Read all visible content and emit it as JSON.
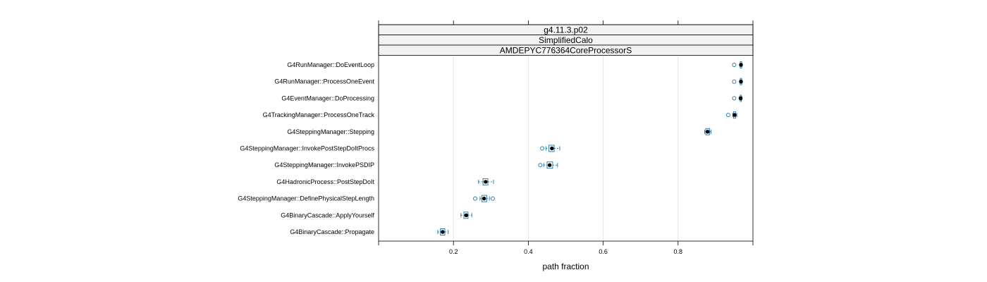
{
  "chart_data": {
    "type": "boxplot",
    "strips": [
      "g4.11.3.p02",
      "SimplifiedCalo",
      "AMDEPYC776364CoreProcessorS"
    ],
    "xlabel": "path fraction",
    "xlim": [
      0.0,
      1.0
    ],
    "xticks": [
      0.2,
      0.4,
      0.6,
      0.8
    ],
    "xtick_labels": [
      "0.2",
      "0.4",
      "0.6",
      "0.8"
    ],
    "grid": true,
    "colors": {
      "box": "#2E7FB0",
      "median": "#000000",
      "grid": "#E6E6E6",
      "strip_bg": "#F2F2F2",
      "frame": "#000000"
    },
    "categories": [
      "G4RunManager::DoEventLoop",
      "G4RunManager::ProcessOneEvent",
      "G4EventManager::DoProcessing",
      "G4TrackingManager::ProcessOneTrack",
      "G4SteppingManager::Stepping",
      "G4SteppingManager::InvokePostStepDoItProcs",
      "G4SteppingManager::InvokePSDIP",
      "G4HadronicProcess::PostStepDoIt",
      "G4SteppingManager::DefinePhysicalStepLength",
      "G4BinaryCascade::ApplyYourself",
      "G4BinaryCascade::Propagate"
    ],
    "boxes": [
      {
        "whisker_low": 0.965,
        "q1": 0.966,
        "median": 0.968,
        "q3": 0.97,
        "whisker_high": 0.971,
        "outliers": [
          0.95
        ]
      },
      {
        "whisker_low": 0.965,
        "q1": 0.966,
        "median": 0.968,
        "q3": 0.97,
        "whisker_high": 0.971,
        "outliers": [
          0.95
        ]
      },
      {
        "whisker_low": 0.964,
        "q1": 0.966,
        "median": 0.967,
        "q3": 0.969,
        "whisker_high": 0.971,
        "outliers": [
          0.95
        ]
      },
      {
        "whisker_low": 0.946,
        "q1": 0.948,
        "median": 0.951,
        "q3": 0.954,
        "whisker_high": 0.957,
        "outliers": [
          0.934
        ]
      },
      {
        "whisker_low": 0.871,
        "q1": 0.874,
        "median": 0.879,
        "q3": 0.884,
        "whisker_high": 0.888,
        "outliers": []
      },
      {
        "whisker_low": 0.447,
        "q1": 0.455,
        "median": 0.463,
        "q3": 0.469,
        "whisker_high": 0.484,
        "outliers": [
          0.437
        ]
      },
      {
        "whisker_low": 0.441,
        "q1": 0.45,
        "median": 0.457,
        "q3": 0.465,
        "whisker_high": 0.478,
        "outliers": [
          0.432
        ]
      },
      {
        "whisker_low": 0.267,
        "q1": 0.279,
        "median": 0.286,
        "q3": 0.292,
        "whisker_high": 0.307,
        "outliers": []
      },
      {
        "whisker_low": 0.271,
        "q1": 0.276,
        "median": 0.282,
        "q3": 0.289,
        "whisker_high": 0.296,
        "outliers": [
          0.258,
          0.305
        ]
      },
      {
        "whisker_low": 0.22,
        "q1": 0.228,
        "median": 0.234,
        "q3": 0.239,
        "whisker_high": 0.249,
        "outliers": []
      },
      {
        "whisker_low": 0.158,
        "q1": 0.165,
        "median": 0.171,
        "q3": 0.177,
        "whisker_high": 0.186,
        "outliers": []
      }
    ]
  }
}
